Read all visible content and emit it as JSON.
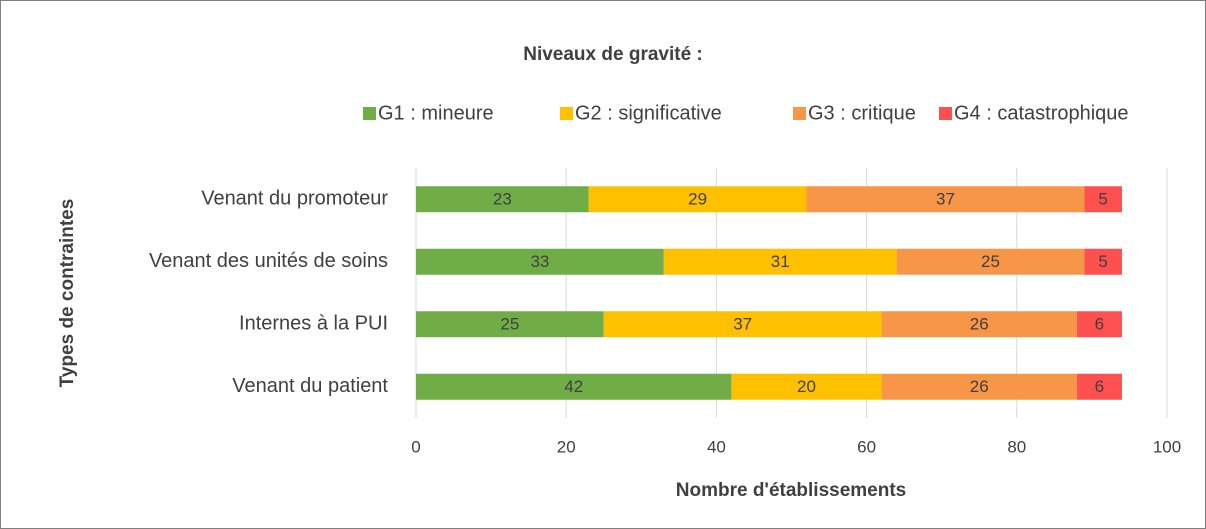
{
  "chart_data": {
    "type": "stacked-barh",
    "legend_title": "Niveaux de gravité :",
    "xlabel": "Nombre d'établissements",
    "ylabel": "Types de contraintes",
    "categories": [
      "Venant du promoteur",
      "Venant des unités de soins",
      "Internes à la PUI",
      "Venant du patient"
    ],
    "series": [
      {
        "name": "G1 : mineure",
        "color": "#70ad47",
        "values": [
          23,
          33,
          25,
          42
        ]
      },
      {
        "name": "G2 : significative",
        "color": "#ffc000",
        "values": [
          29,
          31,
          37,
          20
        ]
      },
      {
        "name": "G3 : critique",
        "color": "#f79646",
        "values": [
          37,
          25,
          26,
          26
        ]
      },
      {
        "name": "G4 : catastrophique",
        "color": "#ff5050",
        "values": [
          5,
          5,
          6,
          6
        ]
      }
    ],
    "xlim": [
      0,
      100
    ],
    "xticks": [
      0,
      20,
      40,
      60,
      80,
      100
    ],
    "grid": true,
    "legend": "top",
    "data_labels": true
  }
}
